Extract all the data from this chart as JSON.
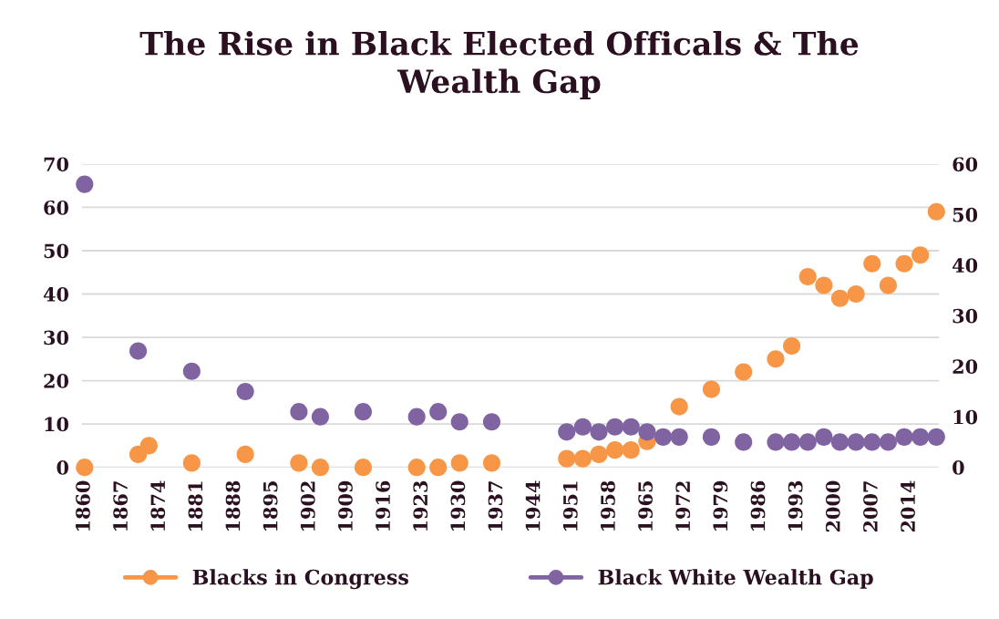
{
  "chart_data": {
    "type": "scatter",
    "title": "The Rise in Black Elected Officals & The\nWealth Gap",
    "xlim": [
      1859.5,
      2019.5
    ],
    "xticks": [
      1860,
      1867,
      1874,
      1881,
      1888,
      1895,
      1902,
      1909,
      1916,
      1923,
      1930,
      1937,
      1944,
      1951,
      1958,
      1965,
      1972,
      1979,
      1986,
      1993,
      2000,
      2007,
      2014
    ],
    "ylim": [
      0,
      70
    ],
    "yticks": [
      0,
      10,
      20,
      30,
      40,
      50,
      60,
      70
    ],
    "y2lim": [
      0,
      60
    ],
    "y2ticks": [
      0,
      10,
      20,
      30,
      40,
      50,
      60
    ],
    "grid": "y",
    "legend": "bottom",
    "marker": "circle",
    "series": [
      {
        "name": "Blacks in Congress",
        "color": "#f79646",
        "x": [
          1860,
          1870,
          1872,
          1880,
          1890,
          1900,
          1904,
          1912,
          1922,
          1926,
          1930,
          1936,
          1950,
          1953,
          1956,
          1959,
          1962,
          1965,
          1971,
          1977,
          1983,
          1989,
          1992,
          1995,
          1998,
          2001,
          2004,
          2007,
          2010,
          2013,
          2016,
          2019
        ],
        "values": [
          0,
          3,
          5,
          1,
          3,
          1,
          0,
          0,
          0,
          0,
          1,
          1,
          2,
          2,
          3,
          4,
          4,
          6,
          14,
          18,
          22,
          25,
          28,
          44,
          42,
          39,
          40,
          47,
          42,
          47,
          49,
          59
        ]
      },
      {
        "name": "Black White Wealth Gap",
        "color": "#8064a2",
        "axis": "y2",
        "x": [
          1860,
          1870,
          1880,
          1890,
          1900,
          1904,
          1912,
          1922,
          1926,
          1930,
          1936,
          1950,
          1953,
          1956,
          1959,
          1962,
          1965,
          1968,
          1971,
          1977,
          1983,
          1989,
          1992,
          1995,
          1998,
          2001,
          2004,
          2007,
          2010,
          2013,
          2016,
          2019
        ],
        "values": [
          56,
          23,
          19,
          15,
          11,
          10,
          11,
          10,
          11,
          9,
          9,
          7,
          8,
          7,
          8,
          8,
          7,
          6,
          6,
          6,
          5,
          5,
          5,
          5,
          6,
          5,
          5,
          5,
          5,
          6,
          6,
          6
        ]
      }
    ]
  }
}
